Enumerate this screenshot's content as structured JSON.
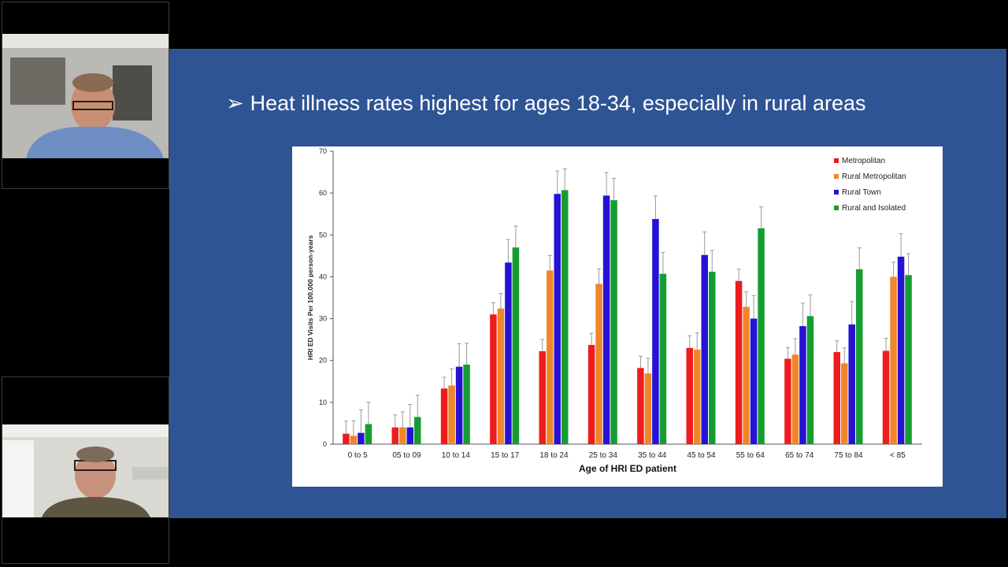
{
  "slide": {
    "headline_arrow": "➢",
    "headline": "Heat illness rates highest for ages 18-34, especially in rural areas"
  },
  "participants": [
    {
      "icon": "person-video-icon"
    },
    {
      "icon": "person-video-icon"
    }
  ],
  "colors": {
    "slide_bg": "#2f5494",
    "Metropolitan": "#ee1c1c",
    "Rural Metropolitan": "#f0862a",
    "Rural Town": "#2612d4",
    "Rural and Isolated": "#169d31"
  },
  "chart_data": {
    "type": "bar",
    "title": "",
    "xlabel": "Age of HRI ED patient",
    "ylabel": "HRI ED Visits Per 100,000 person-years",
    "ylim": [
      0,
      70
    ],
    "yticks": [
      0,
      10,
      20,
      30,
      40,
      50,
      60,
      70
    ],
    "legend_position": "top-right",
    "categories": [
      "0 to 5",
      "05 to 09",
      "10 to 14",
      "15 to 17",
      "18 to 24",
      "25 to 34",
      "35 to 44",
      "45 to 54",
      "55 to 64",
      "65 to 74",
      "75 to 84",
      "< 85"
    ],
    "series": [
      {
        "name": "Metropolitan",
        "values": [
          2.5,
          4,
          13.3,
          31,
          22.2,
          23.7,
          18.2,
          23,
          39,
          20.4,
          22,
          22.3
        ],
        "errors": [
          3,
          3,
          2.7,
          2.8,
          2.8,
          2.8,
          2.8,
          2.9,
          2.8,
          2.7,
          2.7,
          3
        ]
      },
      {
        "name": "Rural Metropolitan",
        "values": [
          2,
          4,
          14,
          32.4,
          41.5,
          38.3,
          16.9,
          22.6,
          32.8,
          21.4,
          19.3,
          40
        ],
        "errors": [
          3.6,
          3.7,
          4,
          3.6,
          3.6,
          3.6,
          3.6,
          4,
          3.6,
          3.8,
          3.7,
          3.5
        ]
      },
      {
        "name": "Rural Town",
        "values": [
          2.7,
          4,
          18.5,
          43.4,
          59.8,
          59.4,
          53.8,
          45.2,
          30,
          28.2,
          28.6,
          44.8
        ],
        "errors": [
          5.5,
          5.5,
          5.5,
          5.5,
          5.5,
          5.5,
          5.5,
          5.5,
          5.5,
          5.5,
          5.5,
          5.5
        ]
      },
      {
        "name": "Rural and Isolated",
        "values": [
          4.8,
          6.5,
          19,
          47,
          60.7,
          58.3,
          40.7,
          41.2,
          51.6,
          30.6,
          41.8,
          40.4
        ],
        "errors": [
          5.2,
          5.2,
          5.1,
          5.1,
          5.1,
          5.2,
          5.1,
          5.1,
          5.1,
          5.1,
          5.1,
          5.1
        ]
      }
    ]
  }
}
